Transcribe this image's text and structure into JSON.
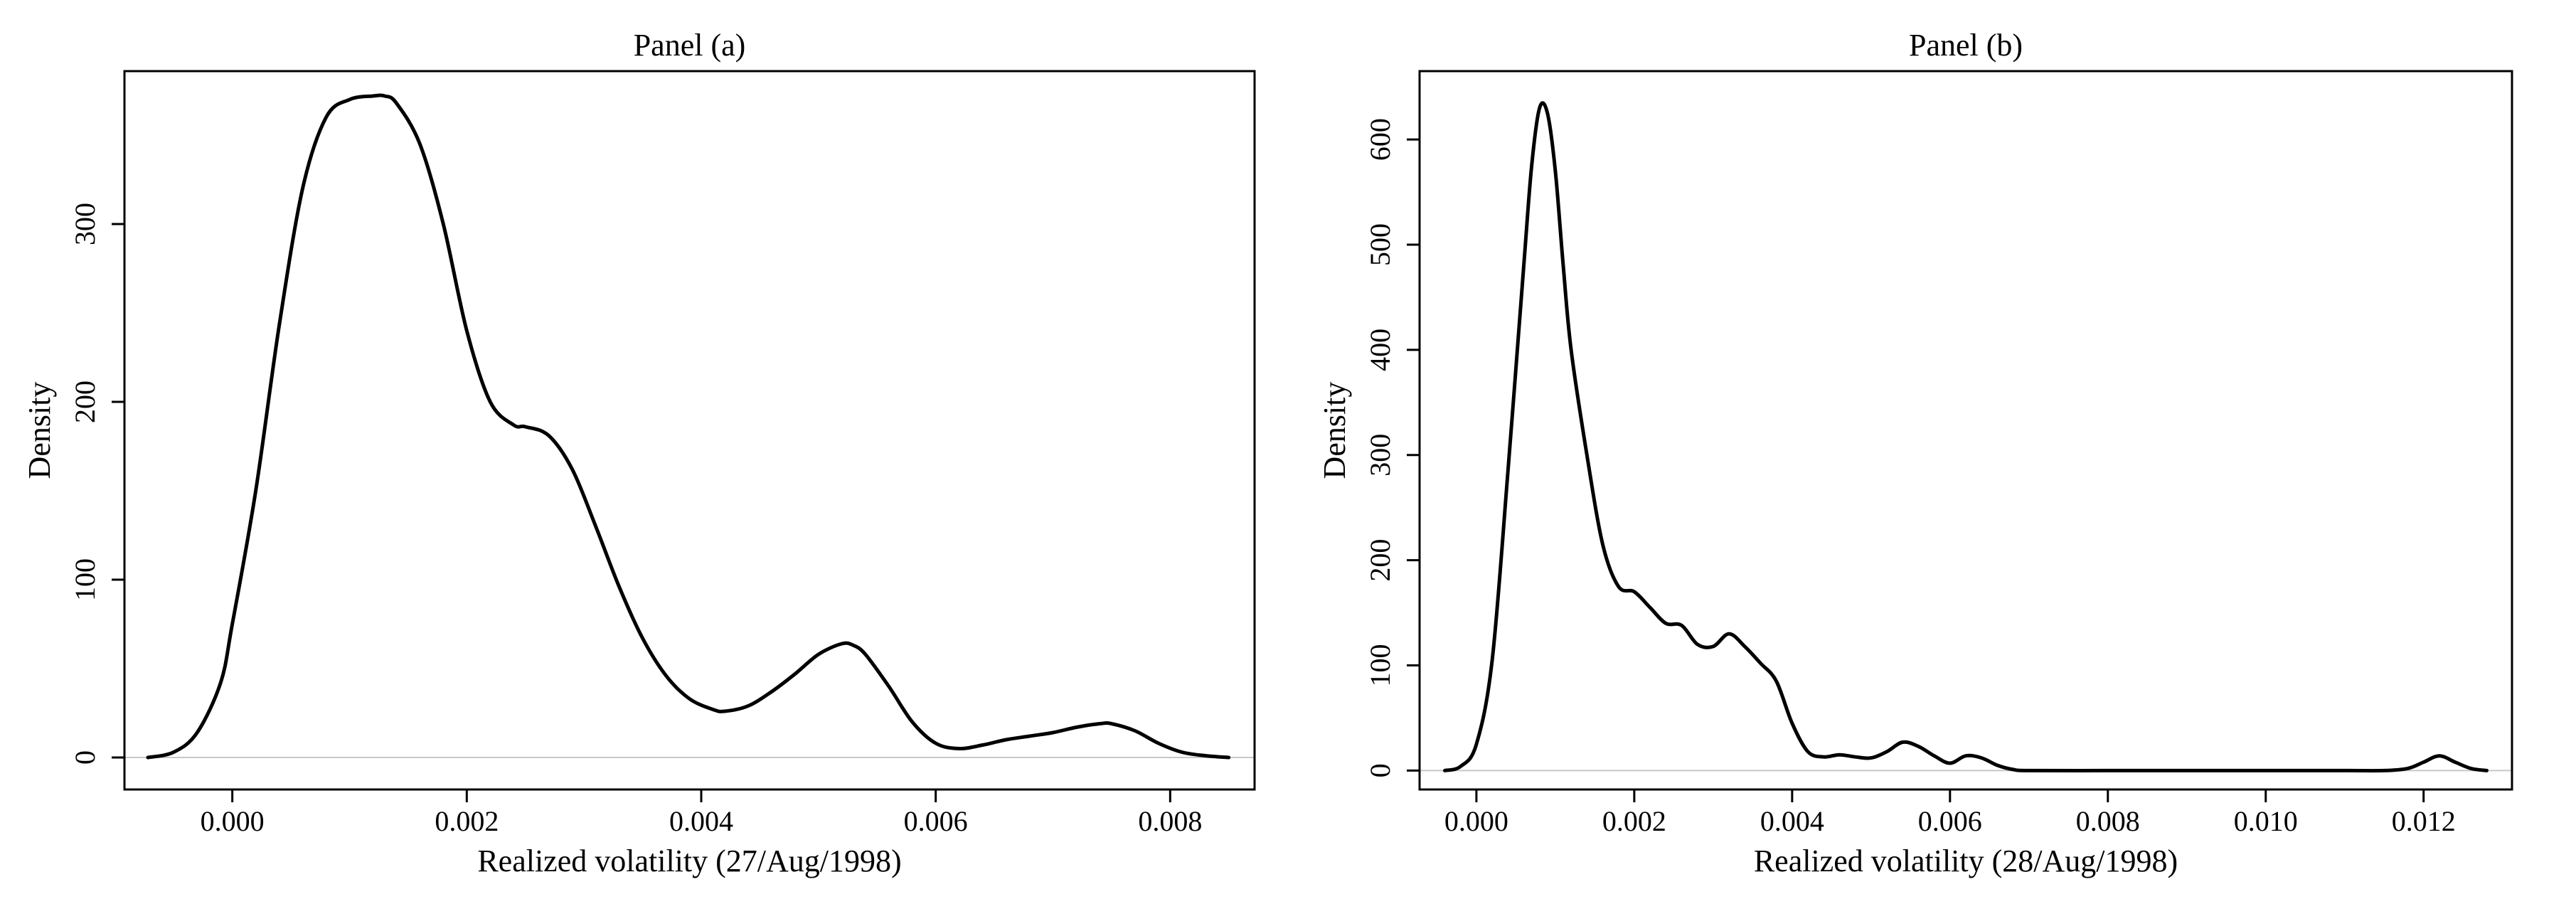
{
  "chart_data": [
    {
      "type": "line",
      "title": "Panel (a)",
      "xlabel": "Realized volatility (27/Aug/1998)",
      "ylabel": "Density",
      "xlim": [
        -0.00092,
        0.00872
      ],
      "ylim": [
        -18,
        386
      ],
      "x_ticks": [
        "0.000",
        "0.002",
        "0.004",
        "0.006",
        "0.008"
      ],
      "x_tick_values": [
        0,
        0.002,
        0.004,
        0.006,
        0.008
      ],
      "y_ticks": [
        "0",
        "100",
        "200",
        "300"
      ],
      "y_tick_values": [
        0,
        100,
        200,
        300
      ],
      "grid": false,
      "legend": "none",
      "series": [
        {
          "x": [
            -0.00072,
            -0.0005,
            -0.0003,
            -0.0001,
            0.0,
            0.0002,
            0.0004,
            0.0006,
            0.0008,
            0.001,
            0.0012,
            0.0013,
            0.0014,
            0.0016,
            0.0018,
            0.002,
            0.0022,
            0.0024,
            0.0025,
            0.0027,
            0.0029,
            0.0031,
            0.0033,
            0.0035,
            0.0037,
            0.0039,
            0.0041,
            0.0042,
            0.0044,
            0.0046,
            0.0048,
            0.005,
            0.0052,
            0.0053,
            0.0054,
            0.0056,
            0.0058,
            0.006,
            0.0062,
            0.0064,
            0.0066,
            0.0068,
            0.007,
            0.0072,
            0.0074,
            0.0075,
            0.0077,
            0.0079,
            0.0081,
            0.0083,
            0.0085
          ],
          "y": [
            0,
            3,
            14,
            42,
            75,
            150,
            243,
            320,
            360,
            370,
            372,
            372,
            368,
            345,
            300,
            240,
            200,
            187,
            186,
            181,
            162,
            130,
            96,
            67,
            46,
            33,
            27,
            26,
            29,
            37,
            47,
            58,
            64,
            63,
            58,
            40,
            20,
            8,
            5,
            7,
            10,
            12,
            14,
            17,
            19,
            19,
            15,
            8,
            3,
            1,
            0
          ]
        }
      ]
    },
    {
      "type": "line",
      "title": "Panel (b)",
      "xlabel": "Realized volatility (28/Aug/1998)",
      "ylabel": "Density",
      "xlim": [
        -0.00072,
        0.01312
      ],
      "ylim": [
        -18,
        665
      ],
      "x_ticks": [
        "0.000",
        "0.002",
        "0.004",
        "0.006",
        "0.008",
        "0.010",
        "0.012"
      ],
      "x_tick_values": [
        0,
        0.002,
        0.004,
        0.006,
        0.008,
        0.01,
        0.012
      ],
      "y_ticks": [
        "0",
        "100",
        "200",
        "300",
        "400",
        "500",
        "600"
      ],
      "y_tick_values": [
        0,
        100,
        200,
        300,
        400,
        500,
        600
      ],
      "grid": false,
      "legend": "none",
      "series": [
        {
          "x": [
            -0.0004,
            -0.0002,
            0.0,
            0.0002,
            0.0004,
            0.0006,
            0.0007,
            0.0008,
            0.0009,
            0.001,
            0.0011,
            0.0012,
            0.0014,
            0.0016,
            0.0018,
            0.002,
            0.0022,
            0.0024,
            0.0026,
            0.0028,
            0.003,
            0.0032,
            0.0034,
            0.0036,
            0.0038,
            0.004,
            0.0042,
            0.0044,
            0.0046,
            0.0048,
            0.005,
            0.0052,
            0.0054,
            0.0056,
            0.0058,
            0.006,
            0.0062,
            0.0064,
            0.0066,
            0.0068,
            0.007,
            0.008,
            0.009,
            0.01,
            0.011,
            0.0115,
            0.0118,
            0.012,
            0.0122,
            0.0124,
            0.0126,
            0.0128
          ],
          "y": [
            0,
            4,
            25,
            105,
            285,
            480,
            575,
            630,
            625,
            570,
            480,
            400,
            300,
            215,
            175,
            170,
            155,
            140,
            138,
            120,
            118,
            130,
            118,
            102,
            85,
            45,
            18,
            13,
            15,
            13,
            12,
            18,
            27,
            23,
            14,
            7,
            14,
            12,
            5,
            1,
            0,
            0,
            0,
            0,
            0,
            0,
            2,
            8,
            14,
            8,
            2,
            0
          ]
        }
      ]
    }
  ]
}
